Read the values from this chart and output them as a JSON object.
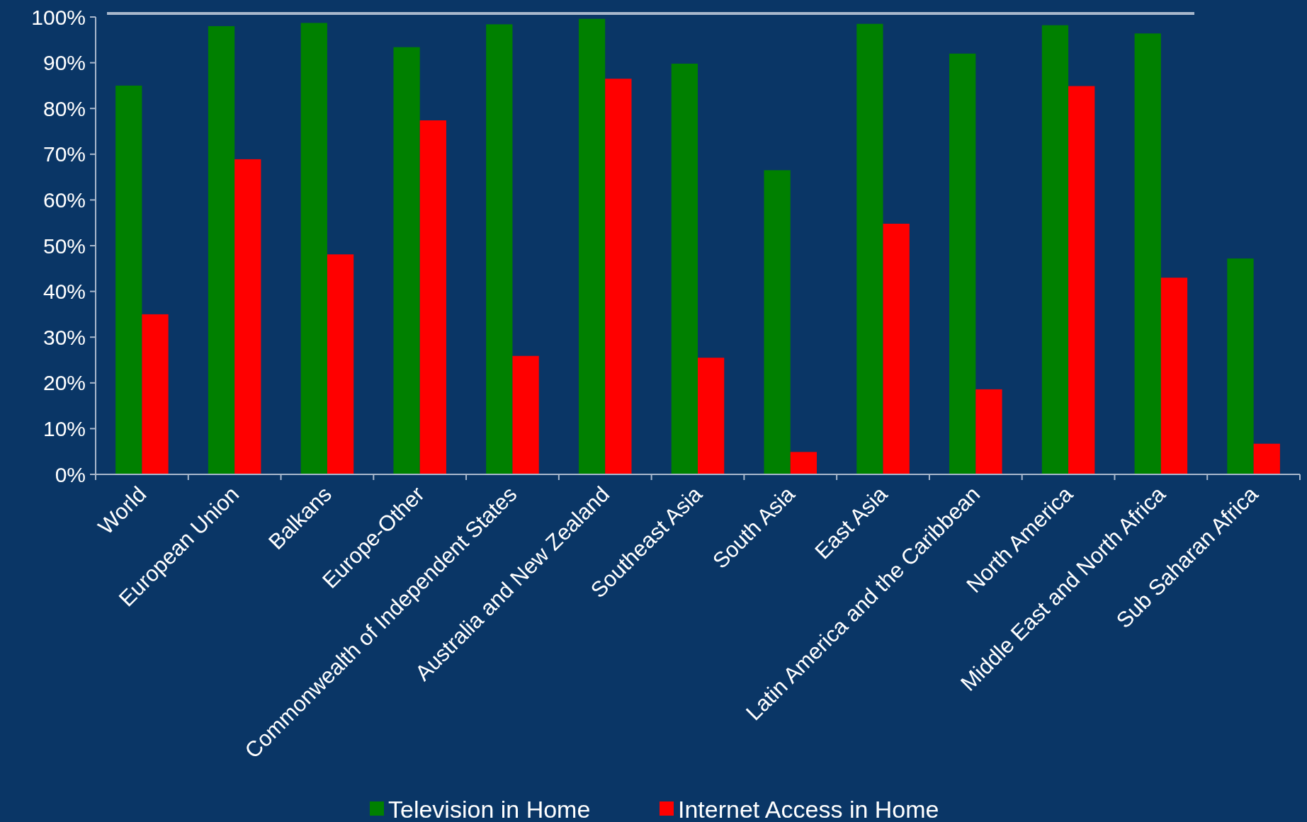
{
  "chart_data": {
    "type": "bar",
    "categories": [
      "World",
      "European Union",
      "Balkans",
      "Europe-Other",
      "Commonwealth of Independent States",
      "Australia and New Zealand",
      "Southeast Asia",
      "South Asia",
      "East Asia",
      "Latin America and the Caribbean",
      "North America",
      "Middle East and North Africa",
      "Sub Saharan Africa"
    ],
    "series": [
      {
        "name": "Television in Home",
        "color": "#008000",
        "values": [
          85,
          98,
          98.7,
          93.4,
          98.4,
          99.6,
          89.8,
          66.5,
          98.5,
          92,
          98.2,
          96.4,
          47.2
        ]
      },
      {
        "name": "Internet Access in Home",
        "color": "#ff0000",
        "values": [
          35,
          68.9,
          48.1,
          77.4,
          25.9,
          86.5,
          25.5,
          4.9,
          54.8,
          18.6,
          84.9,
          43,
          6.7
        ]
      }
    ],
    "ylim": [
      0,
      100
    ],
    "yticks": [
      {
        "value": 0,
        "label": "0%"
      },
      {
        "value": 10,
        "label": "10%"
      },
      {
        "value": 20,
        "label": "20%"
      },
      {
        "value": 30,
        "label": "30%"
      },
      {
        "value": 40,
        "label": "40%"
      },
      {
        "value": 50,
        "label": "50%"
      },
      {
        "value": 60,
        "label": "60%"
      },
      {
        "value": 70,
        "label": "70%"
      },
      {
        "value": 80,
        "label": "80%"
      },
      {
        "value": 90,
        "label": "90%"
      },
      {
        "value": 100,
        "label": "100%"
      }
    ],
    "grid": false,
    "legend": "bottom"
  }
}
